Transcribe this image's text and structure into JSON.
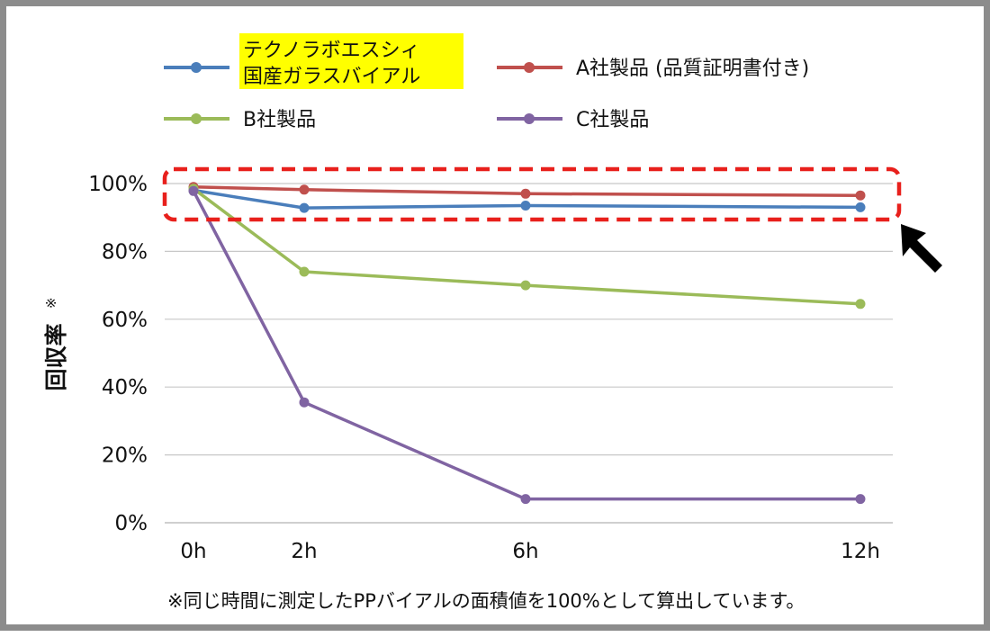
{
  "chart_data": {
    "type": "line",
    "title": "",
    "xlabel": "",
    "ylabel": "回収率",
    "ylabel_mark": "※",
    "categories": [
      "0h",
      "2h",
      "6h",
      "12h"
    ],
    "ylim": [
      0,
      100
    ],
    "yticks": [
      0,
      20,
      40,
      60,
      80,
      100
    ],
    "ytick_labels": [
      "0%",
      "20%",
      "40%",
      "60%",
      "80%",
      "100%"
    ],
    "grid": true,
    "series": [
      {
        "name": "テクノラボエスシィ国産ガラスバイアル",
        "name_lines": [
          "テクノラボエスシィ",
          "国産ガラスバイアル"
        ],
        "color": "#4a7ebb",
        "highlight": "#ffff00",
        "values": [
          98,
          92.8,
          93.5,
          93
        ]
      },
      {
        "name": "A社製品 (品質証明書付き)",
        "name_lines": [
          "A社製品 (品質証明書付き)"
        ],
        "color": "#c0504d",
        "highlight": "",
        "values": [
          99,
          98.2,
          97,
          96.5
        ]
      },
      {
        "name": "B社製品",
        "name_lines": [
          "B社製品"
        ],
        "color": "#9bbb59",
        "highlight": "",
        "values": [
          98.5,
          74,
          70,
          64.5
        ]
      },
      {
        "name": "C社製品",
        "name_lines": [
          "C社製品"
        ],
        "color": "#8064a2",
        "highlight": "",
        "values": [
          97.8,
          35.5,
          7,
          7
        ]
      }
    ],
    "annotations": {
      "highlight_box_color": "#e8201c",
      "arrow_color": "#000000",
      "footnote": "※同じ時間に測定したPPバイアルの面積値を100%として算出しています。"
    }
  }
}
